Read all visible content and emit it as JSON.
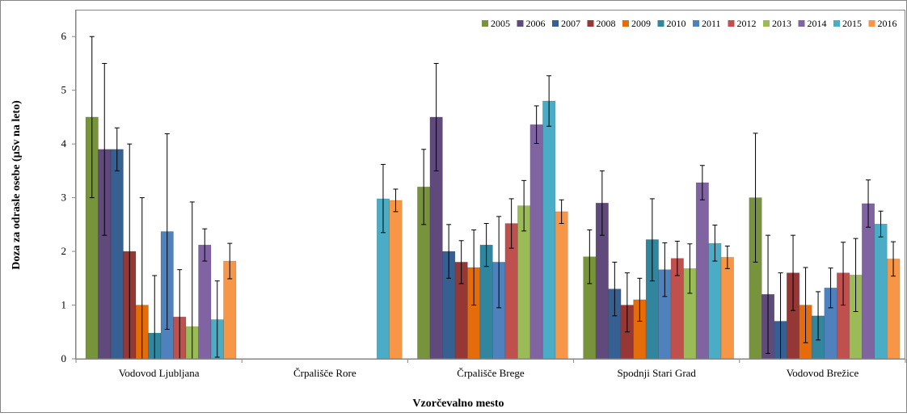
{
  "chart_data": {
    "type": "bar",
    "title": "",
    "xlabel": "Vzorčevalno mesto",
    "ylabel": "Doza za odrasle osebe (µSv na leto)",
    "ylim": [
      0,
      6.5
    ],
    "yticks": [
      0,
      1,
      2,
      3,
      4,
      5,
      6
    ],
    "grid": false,
    "error_bars": true,
    "legend_position": "top-right",
    "categories": [
      "Vodovod Ljubljana",
      "Črpališče Rore",
      "Črpališče Brege",
      "Spodnji Stari Grad",
      "Vodovod Brežice"
    ],
    "series": [
      {
        "name": "2005",
        "color": "#77933C",
        "values": [
          4.5,
          null,
          3.2,
          1.9,
          3.0
        ],
        "err_low": [
          3.0,
          null,
          2.5,
          1.4,
          1.8
        ],
        "err_high": [
          6.0,
          null,
          3.9,
          2.4,
          4.2
        ]
      },
      {
        "name": "2006",
        "color": "#604A7B",
        "values": [
          3.9,
          null,
          4.5,
          2.9,
          1.2
        ],
        "err_low": [
          2.3,
          null,
          3.5,
          2.3,
          0.1
        ],
        "err_high": [
          5.5,
          null,
          5.5,
          3.5,
          2.3
        ]
      },
      {
        "name": "2007",
        "color": "#366092",
        "values": [
          3.9,
          null,
          2.0,
          1.3,
          0.7
        ],
        "err_low": [
          3.5,
          null,
          1.5,
          0.8,
          0.0
        ],
        "err_high": [
          4.3,
          null,
          2.5,
          1.8,
          1.6
        ]
      },
      {
        "name": "2008",
        "color": "#953735",
        "values": [
          2.0,
          null,
          1.8,
          1.0,
          1.6
        ],
        "err_low": [
          0.0,
          null,
          1.4,
          0.5,
          0.9
        ],
        "err_high": [
          4.0,
          null,
          2.2,
          1.6,
          2.3
        ]
      },
      {
        "name": "2009",
        "color": "#E46C0A",
        "values": [
          1.0,
          null,
          1.7,
          1.1,
          1.0
        ],
        "err_low": [
          0.0,
          null,
          1.0,
          0.7,
          0.3
        ],
        "err_high": [
          3.0,
          null,
          2.4,
          1.5,
          1.7
        ]
      },
      {
        "name": "2010",
        "color": "#31859C",
        "values": [
          0.48,
          null,
          2.12,
          2.22,
          0.8
        ],
        "err_low": [
          0.0,
          null,
          1.72,
          1.45,
          0.35
        ],
        "err_high": [
          1.55,
          null,
          2.52,
          2.98,
          1.25
        ]
      },
      {
        "name": "2011",
        "color": "#4F81BD",
        "values": [
          2.37,
          null,
          1.8,
          1.66,
          1.32
        ],
        "err_low": [
          0.55,
          null,
          0.95,
          1.16,
          0.95
        ],
        "err_high": [
          4.19,
          null,
          2.65,
          2.16,
          1.69
        ]
      },
      {
        "name": "2012",
        "color": "#C0504D",
        "values": [
          0.78,
          null,
          2.52,
          1.87,
          1.6
        ],
        "err_low": [
          0.0,
          null,
          2.06,
          1.55,
          1.0
        ],
        "err_high": [
          1.66,
          null,
          2.98,
          2.19,
          2.17
        ]
      },
      {
        "name": "2013",
        "color": "#9BBB59",
        "values": [
          0.6,
          null,
          2.85,
          1.68,
          1.56
        ],
        "err_low": [
          0.0,
          null,
          2.38,
          1.22,
          0.88
        ],
        "err_high": [
          2.92,
          null,
          3.32,
          2.14,
          2.24
        ]
      },
      {
        "name": "2014",
        "color": "#8064A2",
        "values": [
          2.12,
          null,
          4.36,
          3.28,
          2.89
        ],
        "err_low": [
          1.82,
          null,
          4.01,
          2.96,
          2.45
        ],
        "err_high": [
          2.42,
          null,
          4.71,
          3.6,
          3.33
        ]
      },
      {
        "name": "2015",
        "color": "#4BACC6",
        "values": [
          0.73,
          2.98,
          4.8,
          2.15,
          2.51
        ],
        "err_low": [
          0.03,
          2.35,
          4.33,
          1.82,
          2.27
        ],
        "err_high": [
          1.45,
          3.62,
          5.27,
          2.49,
          2.75
        ]
      },
      {
        "name": "2016",
        "color": "#F79646",
        "values": [
          1.82,
          2.95,
          2.74,
          1.89,
          1.86
        ],
        "err_low": [
          1.49,
          2.74,
          2.52,
          1.68,
          1.54
        ],
        "err_high": [
          2.15,
          3.16,
          2.96,
          2.1,
          2.18
        ]
      }
    ]
  }
}
